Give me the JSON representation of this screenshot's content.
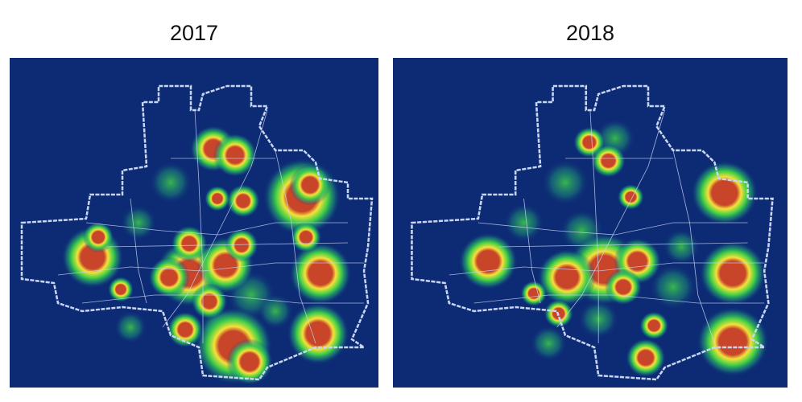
{
  "panels": [
    {
      "title": "2017"
    },
    {
      "title": "2018"
    }
  ]
}
